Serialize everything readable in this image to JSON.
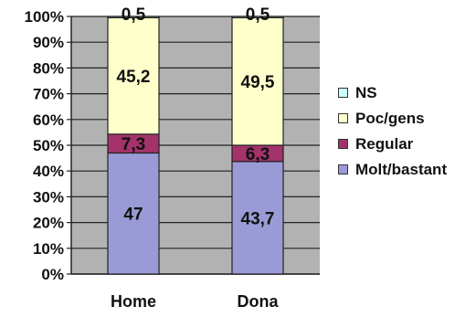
{
  "chart_data": {
    "type": "bar",
    "stacked": true,
    "percent": true,
    "categories": [
      "Home",
      "Dona"
    ],
    "series": [
      {
        "name": "Molt/bastant",
        "values": [
          47,
          43.7
        ],
        "labels": [
          "47",
          "43,7"
        ],
        "color": "#9A9AD6"
      },
      {
        "name": "Regular",
        "values": [
          7.3,
          6.3
        ],
        "labels": [
          "7,3",
          "6,3"
        ],
        "color": "#A3336A"
      },
      {
        "name": "Poc/gens",
        "values": [
          45.2,
          49.5
        ],
        "labels": [
          "45,2",
          "49,5"
        ],
        "color": "#FFFFCC"
      },
      {
        "name": "NS",
        "values": [
          0.5,
          0.5
        ],
        "labels": [
          "0,5",
          "0,5"
        ],
        "color": "#CCFFFF"
      }
    ],
    "y_ticks": [
      "0%",
      "10%",
      "20%",
      "30%",
      "40%",
      "50%",
      "60%",
      "70%",
      "80%",
      "90%",
      "100%"
    ],
    "ylim": [
      0,
      100
    ],
    "grid": true,
    "plot_background": "#B2B2B2",
    "legend_position": "right",
    "legend_order": [
      "NS",
      "Poc/gens",
      "Regular",
      "Molt/bastant"
    ]
  }
}
